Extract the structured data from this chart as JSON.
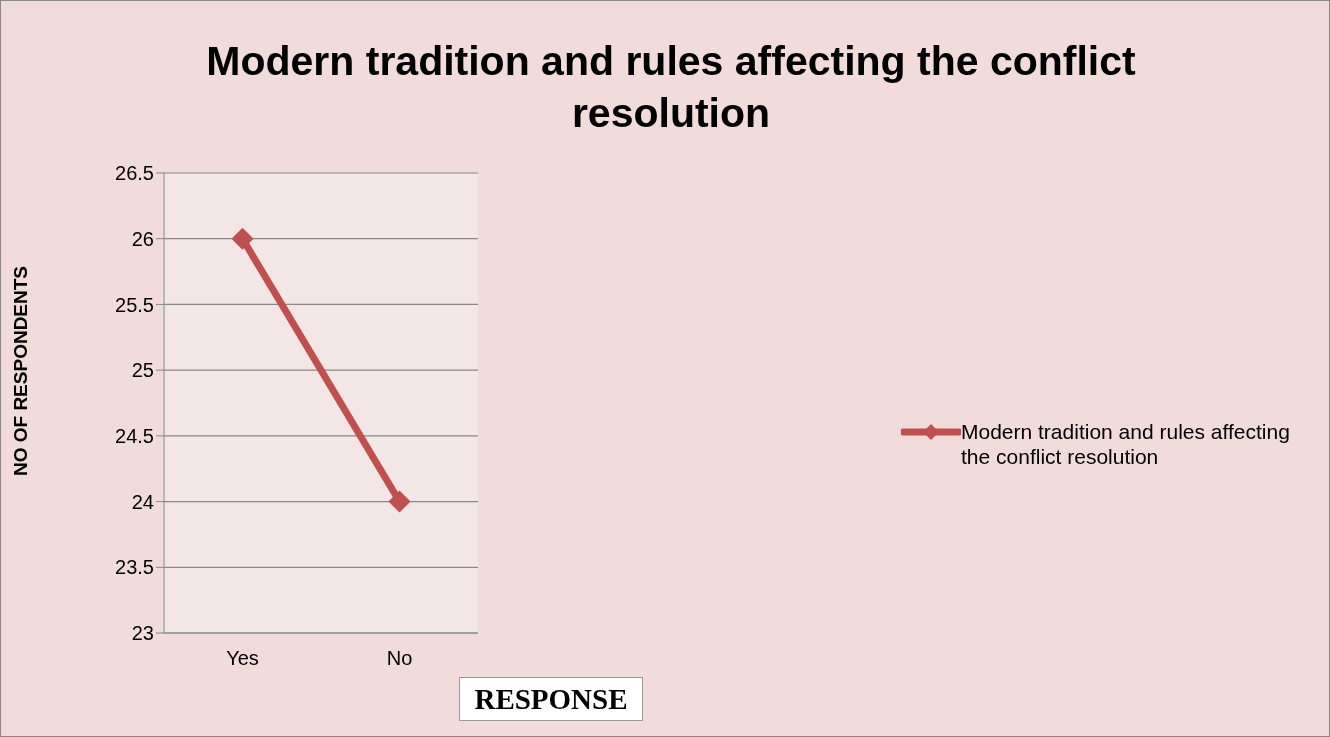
{
  "chart_data": {
    "type": "line",
    "title": "Modern tradition and rules affecting the conflict resolution",
    "xlabel": "RESPONSE",
    "ylabel": "NO OF RESPONDENTS",
    "categories": [
      "Yes",
      "No"
    ],
    "series": [
      {
        "name": "Modern tradition and rules affecting the conflict resolution",
        "color": "#c0504d",
        "values": [
          26,
          24
        ]
      }
    ],
    "ylim": [
      23,
      26.5
    ],
    "yticks": [
      23,
      23.5,
      24,
      24.5,
      25,
      25.5,
      26,
      26.5
    ],
    "grid": "y",
    "legend": "right",
    "marker": "diamond",
    "line_style": "solid"
  }
}
